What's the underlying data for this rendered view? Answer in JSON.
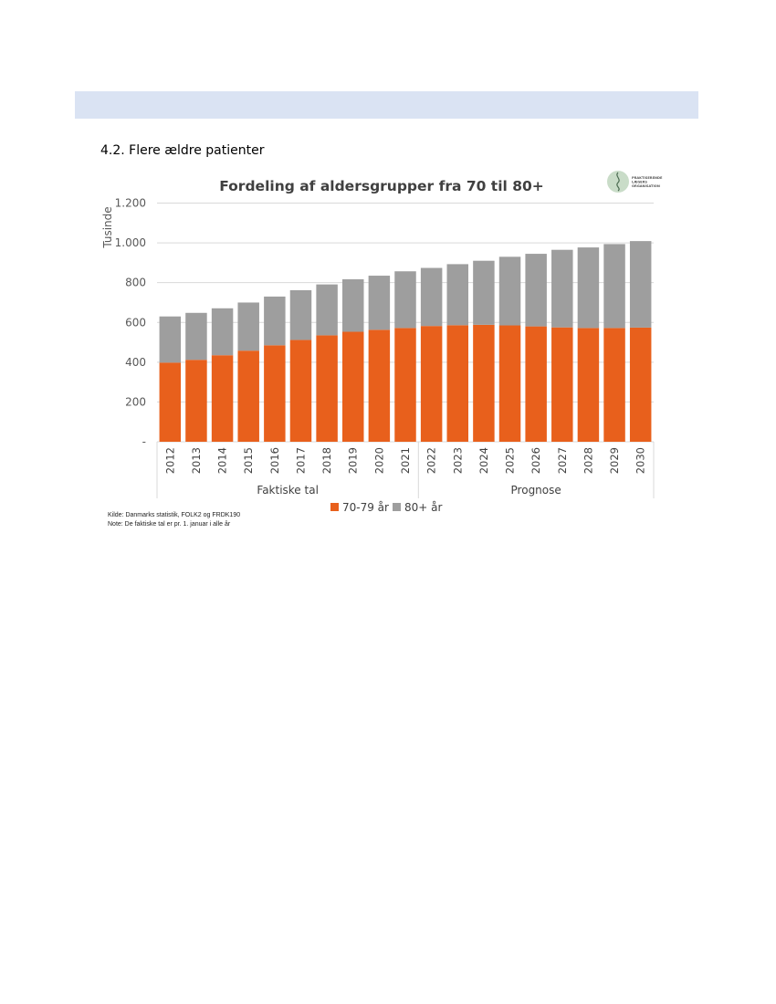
{
  "section": {
    "heading": "4.2. Flere ældre patienter"
  },
  "logo": {
    "lines": [
      "PRAKTISERENDE",
      "LÆGERS",
      "ORGANISATION"
    ]
  },
  "notes": {
    "source": "Kilde: Danmarks statistik, FOLK2 og FRDK190",
    "note": "Note: De faktiske tal er pr. 1. januar i alle år"
  },
  "colors": {
    "series_70_79": "#e8601c",
    "series_80_plus": "#9e9e9e",
    "header_band": "#dae3f3"
  },
  "chart_data": {
    "type": "bar",
    "stacked": true,
    "title": "Fordeling af aldersgrupper fra 70 til 80+",
    "ylabel": "Tusinde",
    "xlabel": "",
    "ylim": [
      0,
      1200
    ],
    "yticks": [
      "-",
      "200",
      "400",
      "600",
      "800",
      "1.000",
      "1.200"
    ],
    "categories": [
      "2012",
      "2013",
      "2014",
      "2015",
      "2016",
      "2017",
      "2018",
      "2019",
      "2020",
      "2021",
      "2022",
      "2023",
      "2024",
      "2025",
      "2026",
      "2027",
      "2028",
      "2029",
      "2030"
    ],
    "category_groups": [
      {
        "label": "Faktiske tal",
        "from": 0,
        "to": 9
      },
      {
        "label": "Prognose",
        "from": 10,
        "to": 18
      }
    ],
    "series": [
      {
        "name": "70-79 år",
        "color": "#e8601c",
        "values": [
          398,
          412,
          435,
          458,
          485,
          512,
          535,
          553,
          563,
          572,
          582,
          586,
          588,
          585,
          580,
          575,
          572,
          572,
          574
        ]
      },
      {
        "name": "80+ år",
        "color": "#9e9e9e",
        "values": [
          232,
          236,
          236,
          242,
          245,
          250,
          256,
          264,
          272,
          285,
          292,
          307,
          322,
          345,
          365,
          390,
          405,
          422,
          435
        ]
      }
    ],
    "legend_position": "bottom",
    "grid": true
  }
}
